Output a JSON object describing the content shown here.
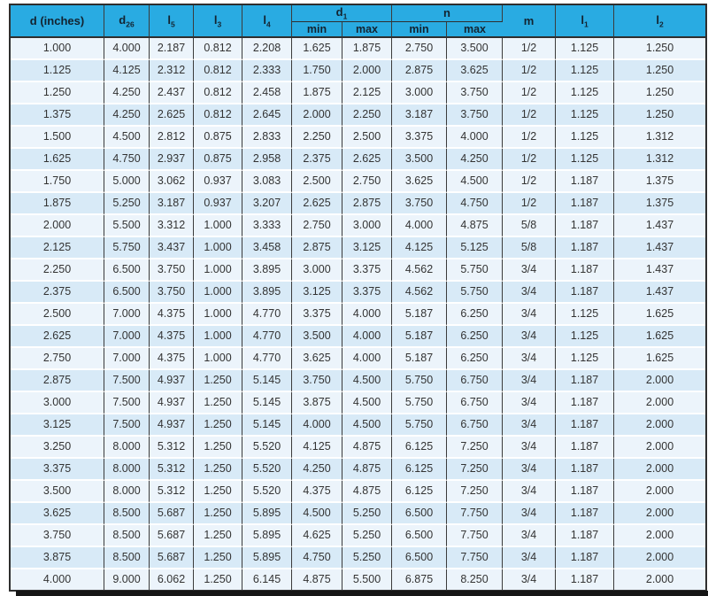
{
  "chart_data": {
    "type": "table",
    "title": "",
    "columns": [
      "d (inches)",
      "d26",
      "l5",
      "l3",
      "l4",
      "d1 min",
      "d1 max",
      "n min",
      "n max",
      "m",
      "l1",
      "l2"
    ],
    "rows": [
      [
        "1.000",
        "4.000",
        "2.187",
        "0.812",
        "2.208",
        "1.625",
        "1.875",
        "2.750",
        "3.500",
        "1/2",
        "1.125",
        "1.250"
      ],
      [
        "1.125",
        "4.125",
        "2.312",
        "0.812",
        "2.333",
        "1.750",
        "2.000",
        "2.875",
        "3.625",
        "1/2",
        "1.125",
        "1.250"
      ],
      [
        "1.250",
        "4.250",
        "2.437",
        "0.812",
        "2.458",
        "1.875",
        "2.125",
        "3.000",
        "3.750",
        "1/2",
        "1.125",
        "1.250"
      ],
      [
        "1.375",
        "4.250",
        "2.625",
        "0.812",
        "2.645",
        "2.000",
        "2.250",
        "3.187",
        "3.750",
        "1/2",
        "1.125",
        "1.250"
      ],
      [
        "1.500",
        "4.500",
        "2.812",
        "0.875",
        "2.833",
        "2.250",
        "2.500",
        "3.375",
        "4.000",
        "1/2",
        "1.125",
        "1.312"
      ],
      [
        "1.625",
        "4.750",
        "2.937",
        "0.875",
        "2.958",
        "2.375",
        "2.625",
        "3.500",
        "4.250",
        "1/2",
        "1.125",
        "1.312"
      ],
      [
        "1.750",
        "5.000",
        "3.062",
        "0.937",
        "3.083",
        "2.500",
        "2.750",
        "3.625",
        "4.500",
        "1/2",
        "1.187",
        "1.375"
      ],
      [
        "1.875",
        "5.250",
        "3.187",
        "0.937",
        "3.207",
        "2.625",
        "2.875",
        "3.750",
        "4.750",
        "1/2",
        "1.187",
        "1.375"
      ],
      [
        "2.000",
        "5.500",
        "3.312",
        "1.000",
        "3.333",
        "2.750",
        "3.000",
        "4.000",
        "4.875",
        "5/8",
        "1.187",
        "1.437"
      ],
      [
        "2.125",
        "5.750",
        "3.437",
        "1.000",
        "3.458",
        "2.875",
        "3.125",
        "4.125",
        "5.125",
        "5/8",
        "1.187",
        "1.437"
      ],
      [
        "2.250",
        "6.500",
        "3.750",
        "1.000",
        "3.895",
        "3.000",
        "3.375",
        "4.562",
        "5.750",
        "3/4",
        "1.187",
        "1.437"
      ],
      [
        "2.375",
        "6.500",
        "3.750",
        "1.000",
        "3.895",
        "3.125",
        "3.375",
        "4.562",
        "5.750",
        "3/4",
        "1.187",
        "1.437"
      ],
      [
        "2.500",
        "7.000",
        "4.375",
        "1.000",
        "4.770",
        "3.375",
        "4.000",
        "5.187",
        "6.250",
        "3/4",
        "1.125",
        "1.625"
      ],
      [
        "2.625",
        "7.000",
        "4.375",
        "1.000",
        "4.770",
        "3.500",
        "4.000",
        "5.187",
        "6.250",
        "3/4",
        "1.125",
        "1.625"
      ],
      [
        "2.750",
        "7.000",
        "4.375",
        "1.000",
        "4.770",
        "3.625",
        "4.000",
        "5.187",
        "6.250",
        "3/4",
        "1.125",
        "1.625"
      ],
      [
        "2.875",
        "7.500",
        "4.937",
        "1.250",
        "5.145",
        "3.750",
        "4.500",
        "5.750",
        "6.750",
        "3/4",
        "1.187",
        "2.000"
      ],
      [
        "3.000",
        "7.500",
        "4.937",
        "1.250",
        "5.145",
        "3.875",
        "4.500",
        "5.750",
        "6.750",
        "3/4",
        "1.187",
        "2.000"
      ],
      [
        "3.125",
        "7.500",
        "4.937",
        "1.250",
        "5.145",
        "4.000",
        "4.500",
        "5.750",
        "6.750",
        "3/4",
        "1.187",
        "2.000"
      ],
      [
        "3.250",
        "8.000",
        "5.312",
        "1.250",
        "5.520",
        "4.125",
        "4.875",
        "6.125",
        "7.250",
        "3/4",
        "1.187",
        "2.000"
      ],
      [
        "3.375",
        "8.000",
        "5.312",
        "1.250",
        "5.520",
        "4.250",
        "4.875",
        "6.125",
        "7.250",
        "3/4",
        "1.187",
        "2.000"
      ],
      [
        "3.500",
        "8.000",
        "5.312",
        "1.250",
        "5.520",
        "4.375",
        "4.875",
        "6.125",
        "7.250",
        "3/4",
        "1.187",
        "2.000"
      ],
      [
        "3.625",
        "8.500",
        "5.687",
        "1.250",
        "5.895",
        "4.500",
        "5.250",
        "6.500",
        "7.750",
        "3/4",
        "1.187",
        "2.000"
      ],
      [
        "3.750",
        "8.500",
        "5.687",
        "1.250",
        "5.895",
        "4.625",
        "5.250",
        "6.500",
        "7.750",
        "3/4",
        "1.187",
        "2.000"
      ],
      [
        "3.875",
        "8.500",
        "5.687",
        "1.250",
        "5.895",
        "4.750",
        "5.250",
        "6.500",
        "7.750",
        "3/4",
        "1.187",
        "2.000"
      ],
      [
        "4.000",
        "9.000",
        "6.062",
        "1.250",
        "6.145",
        "4.875",
        "5.500",
        "6.875",
        "8.250",
        "3/4",
        "1.187",
        "2.000"
      ]
    ]
  },
  "table": {
    "headers": [
      {
        "base": "d (inches)",
        "sub": ""
      },
      {
        "base": "d",
        "sub": "26"
      },
      {
        "base": "l",
        "sub": "5"
      },
      {
        "base": "l",
        "sub": "3"
      },
      {
        "base": "l",
        "sub": "4"
      },
      {
        "base": "d",
        "sub": "1"
      },
      {
        "base": "n",
        "sub": ""
      },
      {
        "base": "m",
        "sub": ""
      },
      {
        "base": "l",
        "sub": "1"
      },
      {
        "base": "l",
        "sub": "2"
      }
    ],
    "subheader_labels": [
      "min",
      "max",
      "min",
      "max"
    ]
  },
  "colors": {
    "header_bg": "#29abe2",
    "header_text": "#132330",
    "row_light": "#ecf4fb",
    "row_dark": "#d8eaf7",
    "border_dark": "#2e2e2e",
    "column_line": "#3b3b3b",
    "cell_text": "#333333",
    "bottom_bar": "#161616"
  }
}
